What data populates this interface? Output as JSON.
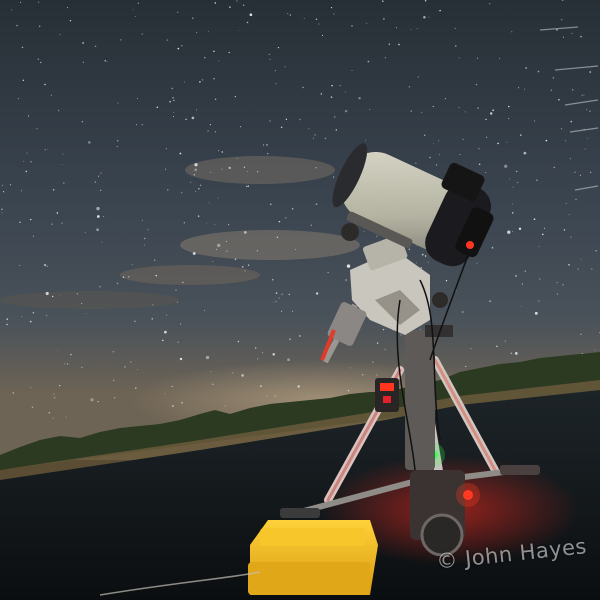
{
  "photo": {
    "subject": "night-sky-telescope",
    "watermark": "© John Hayes"
  }
}
